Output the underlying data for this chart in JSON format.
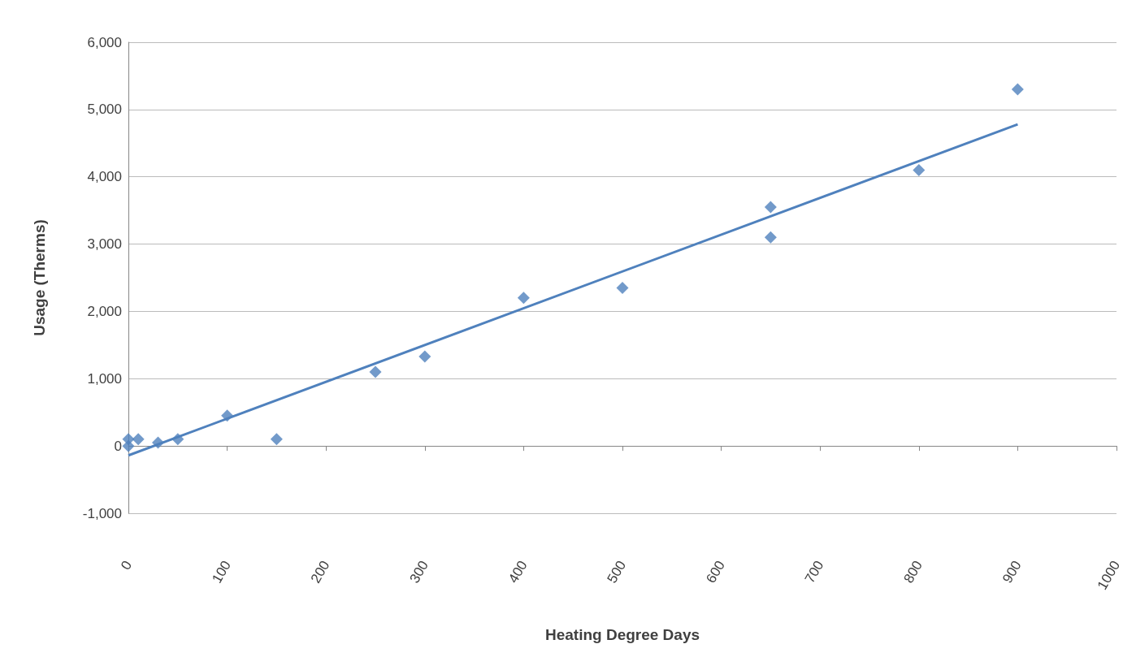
{
  "chart_data": {
    "type": "scatter",
    "xlabel": "Heating Degree Days",
    "ylabel": "Usage (Therms)",
    "marker": "diamond",
    "grid": "y",
    "xlim": [
      0,
      1000
    ],
    "xticks": [
      0,
      100,
      200,
      300,
      400,
      500,
      600,
      700,
      800,
      900,
      1000
    ],
    "ylim": [
      -1000,
      6000
    ],
    "yticks": [
      {
        "value": -1000,
        "label": "-1,000"
      },
      0,
      {
        "value": 1000,
        "label": "1,000"
      },
      {
        "value": 2000,
        "label": "2,000"
      },
      {
        "value": 3000,
        "label": "3,000"
      },
      {
        "value": 4000,
        "label": "4,000"
      },
      {
        "value": 5000,
        "label": "5,000"
      },
      {
        "value": 6000,
        "label": "6,000"
      }
    ],
    "series": [
      {
        "color": "#4f81bd",
        "x": [
          0,
          0,
          10,
          30,
          50,
          100,
          150,
          250,
          300,
          400,
          500,
          650,
          650,
          800,
          900
        ],
        "values": [
          0,
          100,
          100,
          50,
          100,
          450,
          100,
          1100,
          1330,
          2200,
          2350,
          3550,
          3100,
          4100,
          5300
        ]
      },
      {
        "type": "line",
        "color": "#4f81bd",
        "marker": "none",
        "x": [
          0,
          900
        ],
        "values": [
          -140,
          4780
        ]
      }
    ]
  }
}
